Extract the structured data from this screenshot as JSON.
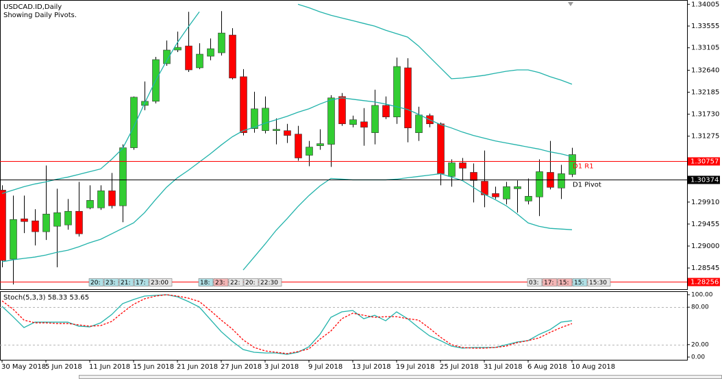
{
  "chart_data": [
    {
      "type": "candlestick",
      "title": "USDCAD.ID,Daily",
      "subtitle": "Showing Daily Pivots.",
      "categories": [
        "30 May 2018",
        null,
        null,
        null,
        "5 Jun 2018",
        null,
        null,
        null,
        "11 Jun 2018",
        null,
        null,
        null,
        "15 Jun 2018",
        null,
        null,
        null,
        "21 Jun 2018",
        null,
        null,
        null,
        "27 Jun 2018",
        null,
        null,
        null,
        "3 Jul 2018",
        null,
        null,
        null,
        "9 Jul 2018",
        null,
        null,
        null,
        "13 Jul 2018",
        null,
        null,
        null,
        "19 Jul 2018",
        null,
        null,
        null,
        "25 Jul 2018",
        null,
        null,
        null,
        "31 Jul 2018",
        null,
        null,
        null,
        "6 Aug 2018",
        null,
        null,
        null,
        "10 Aug 2018"
      ],
      "open": [
        1.30158,
        1.28729,
        1.29564,
        1.29522,
        1.29296,
        1.29409,
        1.29437,
        1.2972,
        1.2979,
        1.2979,
        1.30144,
        1.29833,
        1.31035,
        1.31912,
        1.31997,
        1.32775,
        1.33058,
        1.33143,
        1.3269,
        1.3293,
        1.33001,
        1.33369,
        1.32506,
        1.31431,
        1.31389,
        1.31389,
        1.31389,
        1.31318,
        1.30879,
        1.31077,
        1.31106,
        1.32096,
        1.31516,
        1.31572,
        1.31346,
        1.31912,
        1.31672,
        1.3269,
        1.31346,
        1.317,
        1.3153,
        1.30441,
        1.30724,
        1.30526,
        1.30342,
        1.30087,
        1.29974,
        1.30186,
        1.29932,
        1.30017,
        1.30526,
        1.30201,
        1.30483
      ],
      "high": [
        1.30257,
        1.30045,
        1.30045,
        1.29762,
        1.30667,
        1.30186,
        1.29974,
        1.30328,
        1.30257,
        1.30257,
        1.30512,
        1.31106,
        1.32096,
        1.32407,
        1.32916,
        1.33256,
        1.3344,
        1.3385,
        1.33199,
        1.33298,
        1.33864,
        1.3351,
        1.32662,
        1.32195,
        1.32096,
        1.31643,
        1.3153,
        1.31488,
        1.31176,
        1.31417,
        1.32124,
        1.32167,
        1.317,
        1.31855,
        1.32237,
        1.32096,
        1.32902,
        1.32888,
        1.31884,
        1.31742,
        1.31558,
        1.30795,
        1.30823,
        1.3071,
        1.30978,
        1.30229,
        1.30328,
        1.30356,
        1.30398,
        1.30795,
        1.31176,
        1.30681,
        1.31035
      ],
      "low": [
        1.2856,
        1.28206,
        1.29267,
        1.29012,
        1.29126,
        1.2856,
        1.29338,
        1.29196,
        1.29762,
        1.29748,
        1.29776,
        1.29493,
        1.30993,
        1.31813,
        1.31954,
        1.32732,
        1.33015,
        1.32605,
        1.32662,
        1.32845,
        1.32944,
        1.3245,
        1.3129,
        1.31346,
        1.31332,
        1.31106,
        1.31134,
        1.30766,
        1.30653,
        1.30993,
        1.30639,
        1.31488,
        1.31459,
        1.31077,
        1.31106,
        1.31629,
        1.3153,
        1.31148,
        1.31176,
        1.31459,
        1.30257,
        1.30229,
        1.3037,
        1.29903,
        1.29804,
        1.29974,
        1.29861,
        1.29691,
        1.29861,
        1.29621,
        1.30172,
        1.29974,
        1.30427
      ],
      "close": [
        1.28701,
        1.2955,
        1.29507,
        1.29296,
        1.29663,
        1.29691,
        1.2972,
        1.29253,
        1.29946,
        1.30144,
        1.29833,
        1.31035,
        1.32082,
        1.31997,
        1.3286,
        1.33058,
        1.33114,
        1.32647,
        1.32973,
        1.33086,
        1.33411,
        1.32478,
        1.31346,
        1.31841,
        1.31855,
        1.31417,
        1.3129,
        1.30823,
        1.31049,
        1.3112,
        1.32068,
        1.3153,
        1.31615,
        1.31459,
        1.31912,
        1.31672,
        1.32718,
        1.31445,
        1.31714,
        1.3153,
        1.30498,
        1.30724,
        1.30611,
        1.30356,
        1.30059,
        1.30017,
        1.30229,
        1.30229,
        1.30031,
        1.3054,
        1.30215,
        1.30498,
        1.30894
      ],
      "up_color": "#32cd32",
      "down_color": "#ff0000",
      "series": [
        {
          "color": "#20b2aa",
          "values": [
            1.30087,
            1.30158,
            1.30229,
            1.30285,
            1.30328,
            1.30384,
            1.30427,
            1.30483,
            1.3054,
            1.30597,
            1.30795,
            1.31021,
            1.31459,
            1.31954,
            1.32421,
            1.32831,
            1.33213,
            1.33539,
            1.3385,
            null,
            null,
            null,
            null,
            null,
            null,
            null,
            null,
            1.34005,
            1.33935,
            1.3385,
            1.33779,
            1.33722,
            1.33666,
            1.33609,
            1.33553,
            1.33468,
            1.33397,
            1.33326,
            1.33142,
            1.32916,
            1.3269,
            1.32464,
            1.32478,
            1.32506,
            1.32534,
            1.32577,
            1.32619,
            1.32647,
            1.32647,
            1.32591,
            1.32506,
            1.32435,
            1.3235
          ]
        },
        {
          "color": "#20b2aa",
          "values": [
            1.28673,
            1.28715,
            1.28744,
            1.28772,
            1.28814,
            1.28871,
            1.28913,
            1.28984,
            1.29069,
            1.2914,
            1.29253,
            1.29366,
            1.29479,
            1.29691,
            1.2996,
            1.30215,
            1.30413,
            1.30568,
            1.30738,
            1.30908,
            1.31092,
            1.31261,
            1.31389,
            1.31459,
            1.31544,
            1.31615,
            1.31686,
            1.31771,
            1.31841,
            1.3194,
            1.32025,
            1.32068,
            1.32039,
            1.32011,
            1.31983,
            1.3194,
            1.31884,
            1.31827,
            1.31728,
            1.31615,
            1.31516,
            1.31445,
            1.3136,
            1.3129,
            1.31233,
            1.31176,
            1.31134,
            1.31092,
            1.31049,
            1.31007,
            1.3095,
            1.30908,
            1.30851
          ]
        },
        {
          "color": "#20b2aa",
          "values": [
            null,
            null,
            null,
            null,
            null,
            null,
            null,
            null,
            null,
            null,
            null,
            null,
            null,
            null,
            null,
            null,
            null,
            null,
            null,
            null,
            null,
            null,
            1.28503,
            1.28772,
            1.29041,
            1.29324,
            1.29564,
            1.29819,
            1.30045,
            1.30243,
            1.30399,
            1.30384,
            1.3037,
            1.3037,
            1.3037,
            1.3037,
            1.30384,
            1.30413,
            1.30441,
            1.30469,
            1.30498,
            1.30427,
            1.30356,
            1.30215,
            1.30073,
            1.2996,
            1.29833,
            1.29663,
            1.29479,
            1.29408,
            1.29366,
            1.29352,
            1.29338
          ]
        }
      ],
      "ylim": [
        1.2812,
        1.3408
      ],
      "yticks": [
        1.34005,
        1.33555,
        1.33105,
        {
          "value": 1.3264,
          "label": "1.32640"
        },
        1.32185,
        {
          "value": 1.3173,
          "label": "1.31730"
        },
        1.31275,
        {
          "value": 1.2991,
          "label": "1.29910"
        },
        1.29455,
        {
          "value": 1.29,
          "label": "1.29000"
        },
        1.28545
      ],
      "levels": [
        {
          "value": 1.30757,
          "text": "D1 R1",
          "color": "#ff0000"
        },
        {
          "value": 1.30374,
          "text": "D1 Pivot",
          "color": "#000000"
        },
        {
          "value": 1.28256,
          "color": "#ff0000"
        }
      ],
      "time_markers": [
        [
          {
            "label": "20:",
            "color": "#b0e0e6"
          },
          {
            "label": "23:",
            "color": "#b0e0e6"
          },
          {
            "label": "21:",
            "color": "#b0e0e6"
          },
          {
            "label": "17:",
            "color": "#b0e0e6"
          },
          {
            "label": "23:00",
            "color": "#e6e6e6"
          }
        ],
        [
          {
            "label": "18:",
            "color": "#b0e0e6"
          },
          {
            "label": "23:",
            "color": "#f4b6b6"
          },
          {
            "label": "22:",
            "color": "#e6e6e6"
          },
          {
            "label": "20:",
            "color": "#e6e6e6"
          },
          {
            "label": "22:30",
            "color": "#e6e6e6"
          }
        ],
        [
          {
            "label": "03:",
            "color": "#e6e6e6"
          },
          {
            "label": "17:",
            "color": "#f4b6b6"
          },
          {
            "label": "15:",
            "color": "#f4b6b6"
          },
          {
            "label": "15:",
            "color": "#b0e0e6"
          },
          {
            "label": "15:30",
            "color": "#e6e6e6"
          }
        ]
      ]
    },
    {
      "type": "line",
      "title": "Stoch(5,3,3) 58.33 53.65",
      "series": [
        {
          "color": "#20b2aa",
          "dashed": false,
          "values": [
            81.3,
            64.8,
            47.3,
            56.0,
            56.0,
            56.0,
            56.0,
            49.5,
            48.4,
            54.9,
            68.1,
            85.7,
            92.3,
            97.8,
            98.9,
            100,
            96.7,
            89.0,
            80.2,
            60.4,
            40.7,
            25.3,
            12.1,
            7.7,
            6.6,
            6.6,
            4.4,
            7.7,
            16.5,
            36.3,
            63.7,
            72.5,
            74.7,
            61.5,
            67.0,
            58.2,
            72.5,
            61.5,
            47.3,
            34.1,
            26.4,
            17.6,
            14.3,
            15.4,
            15.4,
            15.4,
            19.8,
            24.2,
            26.4,
            36.3,
            44.0,
            56.0,
            58.33
          ]
        },
        {
          "color": "#ff0000",
          "dashed": true,
          "values": [
            90.1,
            76.9,
            59.3,
            54.9,
            54.9,
            53.8,
            53.8,
            51.6,
            49.5,
            50.5,
            57.1,
            71.4,
            84.6,
            93.4,
            97.8,
            100,
            97.8,
            94.5,
            89.0,
            74.7,
            59.3,
            45.1,
            27.5,
            15.4,
            9.9,
            7.7,
            5.5,
            8.8,
            13.2,
            28.6,
            41.8,
            61.5,
            70.3,
            67.0,
            63.7,
            64.8,
            64.8,
            61.5,
            59.3,
            46.2,
            31.9,
            19.8,
            15.4,
            14.3,
            14.3,
            15.4,
            17.6,
            23.1,
            26.4,
            30.8,
            39.6,
            47.3,
            53.65
          ]
        }
      ],
      "ylim": [
        -4.4,
        104.4
      ],
      "yticks": [
        {
          "value": 100,
          "label": "100.00"
        },
        {
          "value": 80,
          "label": "80.00"
        },
        {
          "value": 20,
          "label": "20.00"
        },
        {
          "value": 0,
          "label": "0.00"
        }
      ],
      "levels": [
        80,
        20
      ]
    }
  ]
}
